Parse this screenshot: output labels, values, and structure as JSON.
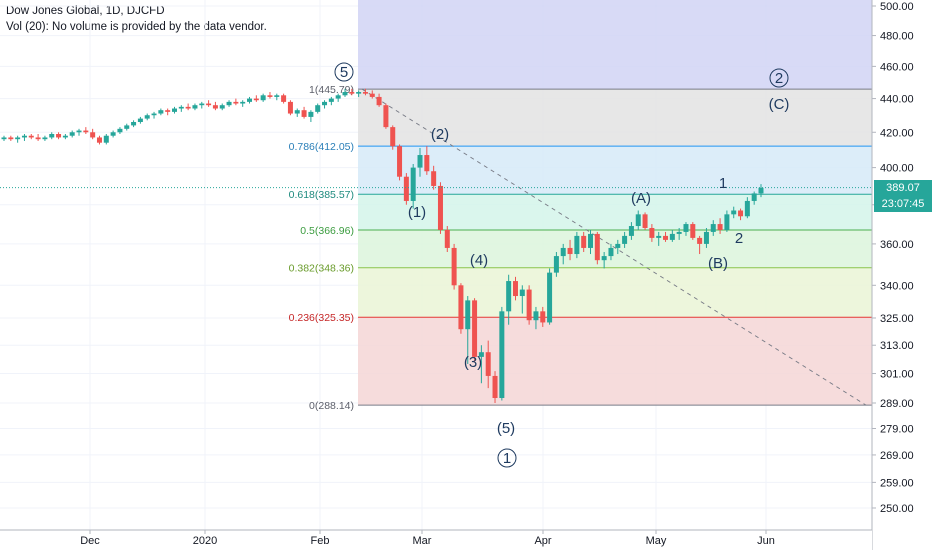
{
  "header": {
    "title": "Dow Jones Global, 1D, DJCFD",
    "volume_note": "Vol (20): No volume is provided by the data vendor."
  },
  "price_badges": {
    "last_price": "389.07",
    "countdown": "23:07:45"
  },
  "colors": {
    "up_candle": "#26a69a",
    "down_candle": "#ef5350",
    "badge_price": "#26a69a",
    "badge_time": "#26a69a",
    "wave_label": "#1e3a5f",
    "grid": "#f0f3fa"
  },
  "chart_data": {
    "type": "candlestick",
    "y_axis": {
      "scale": "log",
      "ticks": [
        "500.00",
        "480.00",
        "460.00",
        "440.00",
        "420.00",
        "400.00",
        "380.00",
        "360.00",
        "340.00",
        "325.00",
        "313.00",
        "301.00",
        "289.00",
        "279.00",
        "269.00",
        "259.00",
        "250.00"
      ]
    },
    "x_axis": {
      "ticks": [
        "Dec",
        "2020",
        "Feb",
        "Mar",
        "Apr",
        "May",
        "Jun"
      ]
    },
    "fib_levels": [
      {
        "label": "1(445.79)",
        "value": 445.79
      },
      {
        "label": "0.786(412.05)",
        "value": 412.05
      },
      {
        "label": "0.618(385.57)",
        "value": 385.57
      },
      {
        "label": "0.5(366.96)",
        "value": 366.96
      },
      {
        "label": "0.382(348.36)",
        "value": 348.36
      },
      {
        "label": "0.236(325.35)",
        "value": 325.35
      },
      {
        "label": "0(288.14)",
        "value": 288.14
      }
    ],
    "fib_zones": [
      {
        "from": 445.79,
        "to": 520,
        "color": "#d1d4f5"
      },
      {
        "from": 412.05,
        "to": 445.79,
        "color": "#e3e3e3"
      },
      {
        "from": 385.57,
        "to": 412.05,
        "color": "#d6eaf8"
      },
      {
        "from": 366.96,
        "to": 385.57,
        "color": "#d4f5ea"
      },
      {
        "from": 348.36,
        "to": 366.96,
        "color": "#dcf5dc"
      },
      {
        "from": 325.35,
        "to": 348.36,
        "color": "#eaf5d6"
      },
      {
        "from": 288.14,
        "to": 325.35,
        "color": "#f5d6d6"
      }
    ],
    "fib_line_colors": [
      "#787b86",
      "#2196f3",
      "#26a69a",
      "#4caf50",
      "#8bc34a",
      "#e53935",
      "#787b86"
    ],
    "fib_label_colors": [
      "#5d606b",
      "#2a7fb8",
      "#1e8a7e",
      "#3b9c3f",
      "#6a9c2c",
      "#c62828",
      "#5d606b"
    ],
    "last_price": 389.07,
    "wave_labels": [
      {
        "text": "5",
        "circled": true
      },
      {
        "text": "(2)",
        "circled": false
      },
      {
        "text": "(1)",
        "circled": false
      },
      {
        "text": "(4)",
        "circled": false
      },
      {
        "text": "(3)",
        "circled": false
      },
      {
        "text": "(5)",
        "circled": false
      },
      {
        "text": "1",
        "circled": true
      },
      {
        "text": "(A)",
        "circled": false
      },
      {
        "text": "(B)",
        "circled": false
      },
      {
        "text": "1",
        "circled": false
      },
      {
        "text": "2",
        "circled": false
      },
      {
        "text": "2",
        "circled": true
      },
      {
        "text": "(C)",
        "circled": false
      }
    ],
    "candles": [
      [
        416,
        418,
        415,
        417
      ],
      [
        417,
        418,
        415,
        416
      ],
      [
        416,
        418,
        414,
        417
      ],
      [
        417,
        419,
        415,
        418
      ],
      [
        418,
        419,
        416,
        417
      ],
      [
        417,
        419,
        415,
        416
      ],
      [
        416,
        418,
        415,
        417
      ],
      [
        417,
        420,
        416,
        419
      ],
      [
        419,
        420,
        416,
        417
      ],
      [
        417,
        419,
        416,
        418
      ],
      [
        418,
        421,
        417,
        420
      ],
      [
        420,
        422,
        418,
        421
      ],
      [
        421,
        423,
        419,
        420
      ],
      [
        420,
        422,
        416,
        417
      ],
      [
        417,
        418,
        413,
        414
      ],
      [
        414,
        419,
        413,
        418
      ],
      [
        418,
        421,
        417,
        420
      ],
      [
        420,
        423,
        419,
        422
      ],
      [
        422,
        425,
        421,
        424
      ],
      [
        424,
        427,
        423,
        426
      ],
      [
        426,
        429,
        425,
        428
      ],
      [
        428,
        431,
        427,
        430
      ],
      [
        430,
        432,
        428,
        431
      ],
      [
        431,
        434,
        430,
        433
      ],
      [
        433,
        434,
        430,
        432
      ],
      [
        432,
        435,
        431,
        434
      ],
      [
        434,
        436,
        432,
        435
      ],
      [
        435,
        437,
        433,
        434
      ],
      [
        434,
        437,
        433,
        436
      ],
      [
        436,
        438,
        434,
        437
      ],
      [
        437,
        439,
        435,
        436
      ],
      [
        436,
        438,
        433,
        434
      ],
      [
        434,
        437,
        433,
        436
      ],
      [
        436,
        439,
        435,
        438
      ],
      [
        438,
        440,
        436,
        437
      ],
      [
        437,
        439,
        435,
        438
      ],
      [
        438,
        441,
        437,
        440
      ],
      [
        440,
        442,
        438,
        439
      ],
      [
        439,
        443,
        438,
        442
      ],
      [
        442,
        444,
        440,
        441
      ],
      [
        441,
        443,
        439,
        442
      ],
      [
        442,
        443,
        437,
        438
      ],
      [
        438,
        439,
        430,
        431
      ],
      [
        431,
        434,
        429,
        433
      ],
      [
        433,
        435,
        428,
        429
      ],
      [
        429,
        433,
        426,
        432
      ],
      [
        432,
        437,
        431,
        436
      ],
      [
        436,
        439,
        434,
        438
      ],
      [
        438,
        441,
        436,
        440
      ],
      [
        440,
        443,
        438,
        442
      ],
      [
        442,
        446,
        441,
        444
      ],
      [
        444,
        446,
        442,
        443
      ],
      [
        443,
        445,
        441,
        444
      ],
      [
        444,
        446,
        442,
        443
      ],
      [
        443,
        445,
        440,
        441
      ],
      [
        441,
        443,
        435,
        436
      ],
      [
        436,
        437,
        422,
        423
      ],
      [
        423,
        424,
        410,
        412
      ],
      [
        412,
        413,
        393,
        395
      ],
      [
        395,
        397,
        380,
        382
      ],
      [
        382,
        402,
        378,
        400
      ],
      [
        400,
        411,
        395,
        407
      ],
      [
        407,
        412,
        396,
        398
      ],
      [
        398,
        401,
        388,
        390
      ],
      [
        390,
        392,
        365,
        367
      ],
      [
        367,
        369,
        356,
        358
      ],
      [
        358,
        360,
        338,
        340
      ],
      [
        340,
        341,
        318,
        320
      ],
      [
        320,
        335,
        305,
        333
      ],
      [
        333,
        334,
        306,
        308
      ],
      [
        308,
        313,
        297,
        310
      ],
      [
        310,
        315,
        295,
        300
      ],
      [
        300,
        302,
        289,
        291
      ],
      [
        291,
        330,
        290,
        328
      ],
      [
        328,
        345,
        322,
        342
      ],
      [
        342,
        344,
        333,
        335
      ],
      [
        335,
        340,
        327,
        338
      ],
      [
        338,
        340,
        322,
        324
      ],
      [
        324,
        330,
        320,
        328
      ],
      [
        328,
        330,
        321,
        323
      ],
      [
        323,
        348,
        322,
        346
      ],
      [
        346,
        356,
        344,
        354
      ],
      [
        354,
        360,
        350,
        358
      ],
      [
        358,
        362,
        352,
        355
      ],
      [
        355,
        366,
        353,
        364
      ],
      [
        364,
        366,
        356,
        358
      ],
      [
        358,
        367,
        355,
        365
      ],
      [
        365,
        366,
        350,
        352
      ],
      [
        352,
        356,
        348,
        354
      ],
      [
        354,
        360,
        352,
        358
      ],
      [
        358,
        362,
        355,
        360
      ],
      [
        360,
        366,
        358,
        364
      ],
      [
        364,
        371,
        362,
        369
      ],
      [
        369,
        377,
        367,
        375
      ],
      [
        375,
        376,
        367,
        368
      ],
      [
        368,
        370,
        361,
        363
      ],
      [
        363,
        366,
        359,
        364
      ],
      [
        364,
        366,
        361,
        362
      ],
      [
        362,
        367,
        361,
        365
      ],
      [
        365,
        368,
        362,
        366
      ],
      [
        366,
        371,
        364,
        370
      ],
      [
        370,
        371,
        362,
        363
      ],
      [
        363,
        364,
        355,
        360
      ],
      [
        360,
        368,
        358,
        366
      ],
      [
        366,
        372,
        364,
        370
      ],
      [
        370,
        373,
        365,
        367
      ],
      [
        367,
        377,
        366,
        375
      ],
      [
        375,
        379,
        373,
        377
      ],
      [
        377,
        378,
        372,
        374
      ],
      [
        374,
        384,
        373,
        382
      ],
      [
        382,
        387,
        380,
        386
      ],
      [
        386,
        391,
        384,
        389
      ]
    ]
  }
}
